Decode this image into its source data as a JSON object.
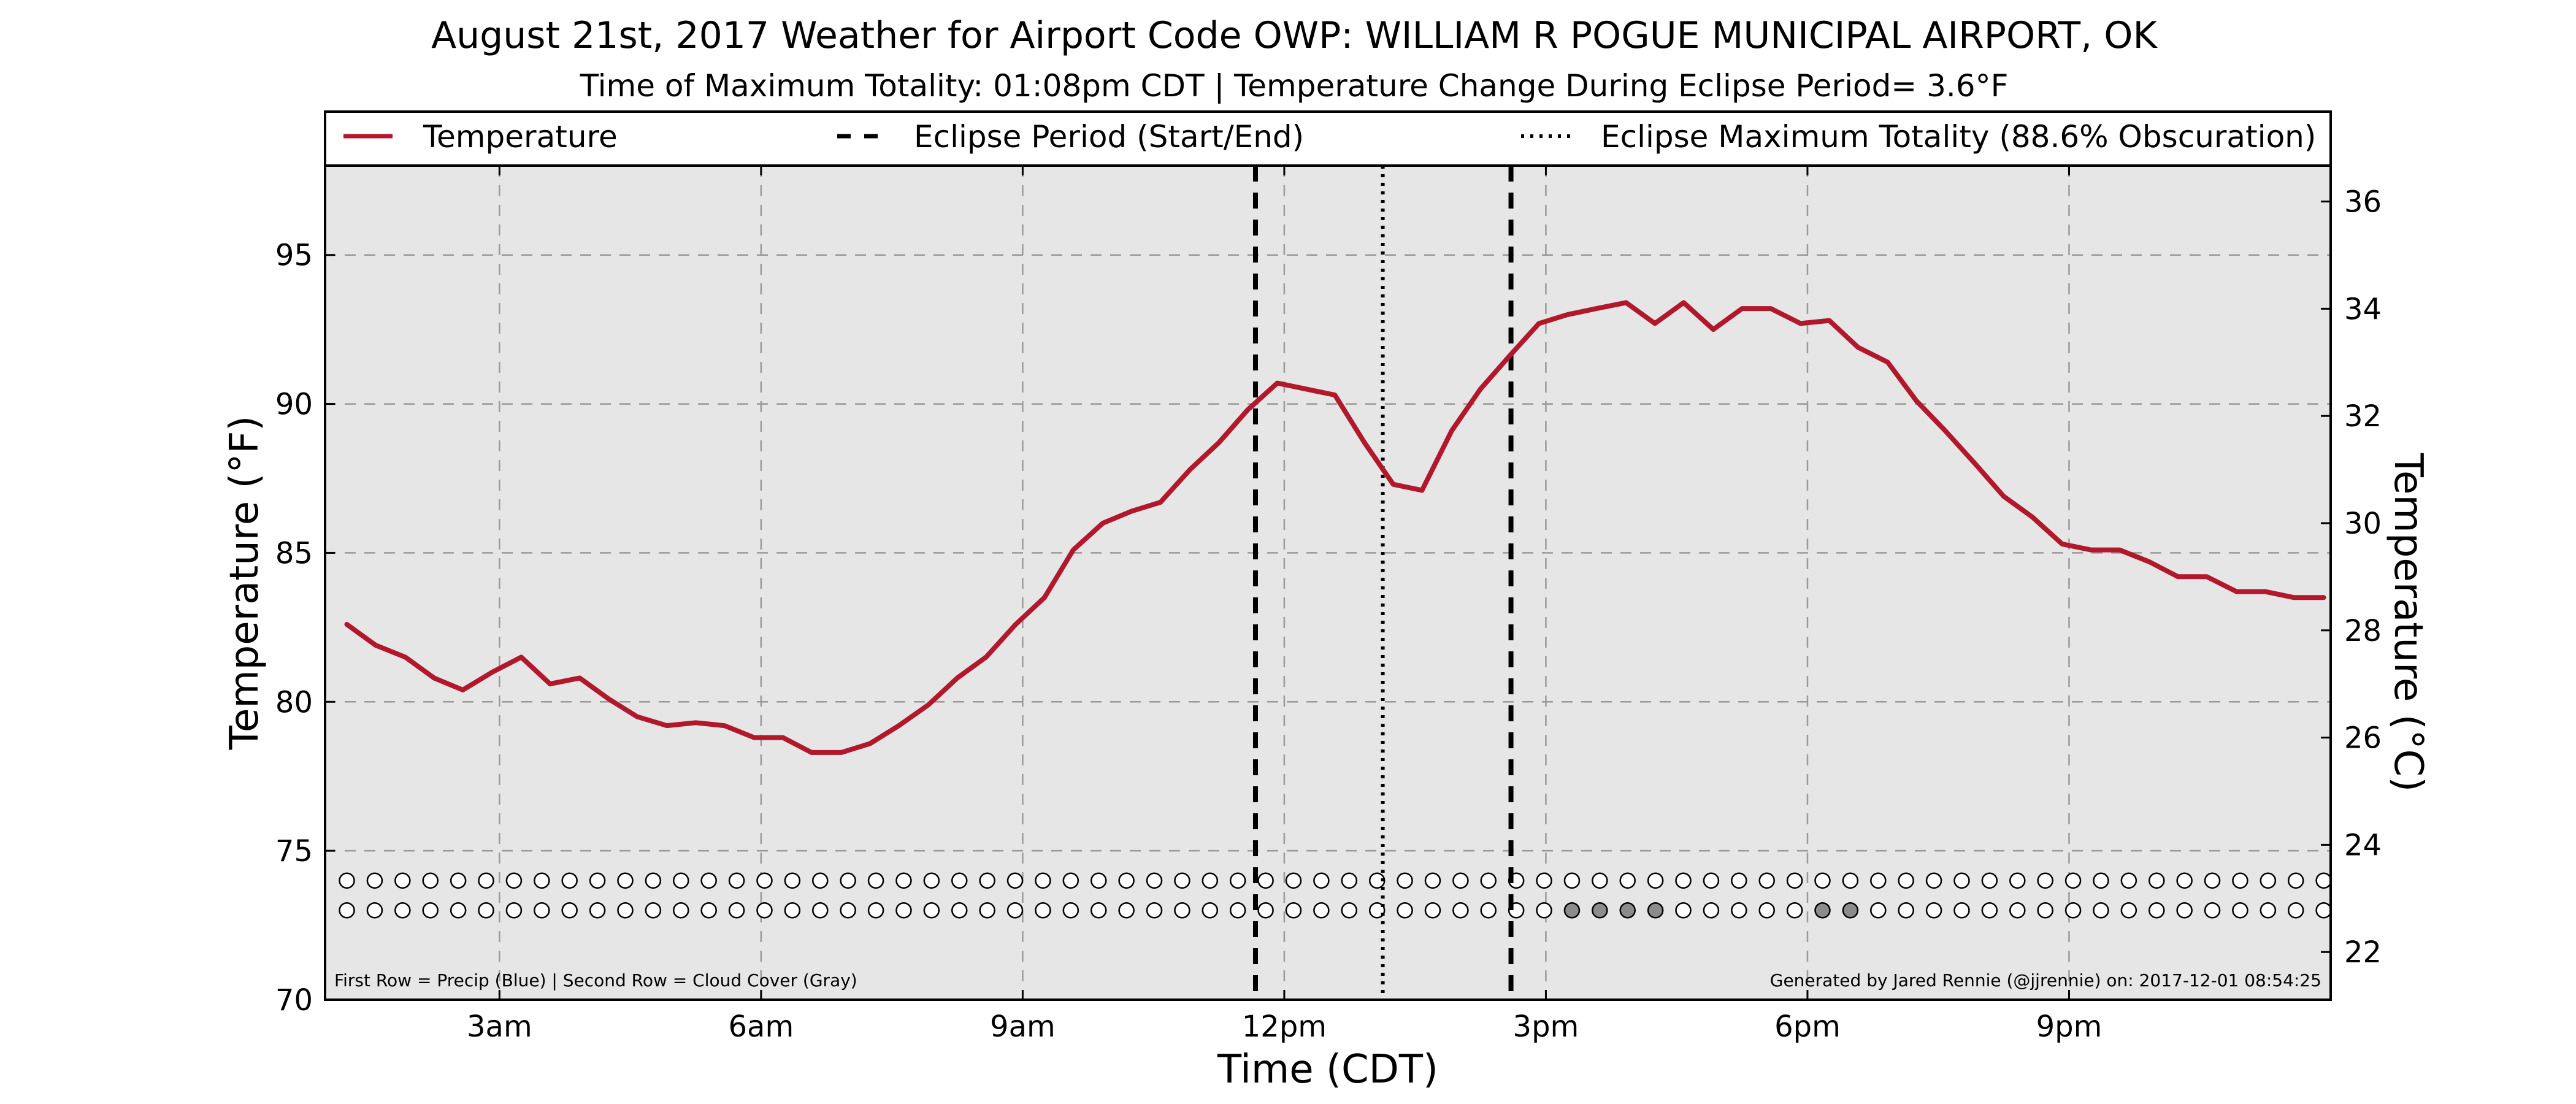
{
  "chart_data": {
    "type": "line",
    "title": "August 21st, 2017 Weather for Airport Code OWP: WILLIAM R POGUE MUNICIPAL AIRPORT, OK",
    "subtitle": "Time of Maximum Totality: 01:08pm CDT | Temperature Change During Eclipse Period= 3.6°F",
    "xlabel": "Time (CDT)",
    "ylabel": "Temperature (°F)",
    "ylabel_right": "Temperature (°C)",
    "xlim": [
      1.0,
      24.0
    ],
    "ylim": [
      70,
      98
    ],
    "ylim_right": [
      21.11,
      36.67
    ],
    "x_ticks": [
      {
        "x": 3,
        "label": "3am"
      },
      {
        "x": 6,
        "label": "6am"
      },
      {
        "x": 9,
        "label": "9am"
      },
      {
        "x": 12,
        "label": "12pm"
      },
      {
        "x": 15,
        "label": "3pm"
      },
      {
        "x": 18,
        "label": "6pm"
      },
      {
        "x": 21,
        "label": "9pm"
      }
    ],
    "y_ticks": [
      70,
      75,
      80,
      85,
      90,
      95
    ],
    "y_ticks_right": [
      22,
      24,
      26,
      28,
      30,
      32,
      34,
      36
    ],
    "grid": true,
    "legend_placement": "top",
    "legend": {
      "temperature": "Temperature",
      "eclipse_period": "Eclipse Period (Start/End)",
      "eclipse_max": "Eclipse Maximum Totality (88.6% Obscuration)"
    },
    "eclipse_start": 11.67,
    "eclipse_max_time": 13.13,
    "eclipse_end": 14.6,
    "series": [
      {
        "name": "Temperature",
        "color": "#b2182b",
        "x": [
          1.25,
          1.58,
          1.92,
          2.25,
          2.58,
          2.92,
          3.25,
          3.58,
          3.92,
          4.25,
          4.58,
          4.92,
          5.25,
          5.58,
          5.92,
          6.25,
          6.58,
          6.92,
          7.25,
          7.58,
          7.92,
          8.25,
          8.58,
          8.92,
          9.25,
          9.58,
          9.92,
          10.25,
          10.58,
          10.92,
          11.25,
          11.58,
          11.92,
          12.25,
          12.58,
          12.92,
          13.25,
          13.58,
          13.92,
          14.25,
          14.58,
          14.92,
          15.25,
          15.58,
          15.92,
          16.25,
          16.58,
          16.92,
          17.25,
          17.58,
          17.92,
          18.25,
          18.58,
          18.92,
          19.25,
          19.58,
          19.92,
          20.25,
          20.58,
          20.92,
          21.25,
          21.58,
          21.92,
          22.25,
          22.58,
          22.92,
          23.25,
          23.58,
          23.92
        ],
        "values": [
          82.6,
          81.9,
          81.5,
          80.8,
          80.4,
          81.0,
          81.5,
          80.6,
          80.8,
          80.1,
          79.5,
          79.2,
          79.3,
          79.2,
          78.8,
          78.8,
          78.3,
          78.3,
          78.6,
          79.2,
          79.9,
          80.8,
          81.5,
          82.6,
          83.5,
          85.1,
          86.0,
          86.4,
          86.7,
          87.8,
          88.7,
          89.8,
          90.7,
          90.5,
          90.3,
          88.7,
          87.3,
          87.1,
          89.1,
          90.5,
          91.6,
          92.7,
          93.0,
          93.2,
          93.4,
          92.7,
          93.4,
          92.5,
          93.2,
          93.2,
          92.7,
          92.8,
          91.9,
          91.4,
          90.1,
          89.1,
          88.0,
          86.9,
          86.2,
          85.3,
          85.1,
          85.1,
          84.7,
          84.2,
          84.2,
          83.7,
          83.7,
          83.5,
          83.5
        ]
      }
    ],
    "indicator_rows": {
      "precip_level": [
        0,
        0,
        0,
        0,
        0,
        0,
        0,
        0,
        0,
        0,
        0,
        0,
        0,
        0,
        0,
        0,
        0,
        0,
        0,
        0,
        0,
        0,
        0,
        0,
        0,
        0,
        0,
        0,
        0,
        0,
        0,
        0,
        0,
        0,
        0,
        0,
        0,
        0,
        0,
        0,
        0,
        0,
        0,
        0,
        0,
        0,
        0,
        0,
        0,
        0,
        0,
        0,
        0,
        0,
        0,
        0,
        0,
        0,
        0,
        0,
        0,
        0,
        0,
        0,
        0,
        0,
        0,
        0,
        0,
        0,
        0,
        0
      ],
      "cloud_level": [
        0,
        0,
        0,
        0,
        0,
        0,
        0,
        0,
        0,
        0,
        0,
        0,
        0,
        0,
        0,
        0,
        0,
        0,
        0,
        0,
        0,
        0,
        0,
        0,
        0,
        0,
        0,
        0,
        0,
        0,
        0,
        0,
        0,
        0,
        0,
        0,
        0,
        0,
        0,
        0,
        0,
        0,
        0,
        0,
        0,
        0,
        0,
        0,
        0,
        0,
        0,
        0,
        0,
        0,
        0,
        0,
        0,
        0,
        0,
        0,
        0,
        0,
        0,
        0,
        0,
        0,
        0,
        0,
        0,
        0,
        0,
        0
      ]
    },
    "cloud_gray_indices": [
      44,
      45,
      46,
      47,
      53,
      54
    ],
    "footnote_left": "First Row = Precip (Blue) | Second Row = Cloud Cover (Gray)",
    "footnote_right": "Generated by Jared Rennie (@jjrennie) on: 2017-12-01 08:54:25",
    "colors": {
      "line": "#b2182b",
      "plot_bg": "#e6e6e6",
      "grid": "#9a9a9a",
      "cloud_gray": "#8c8c8c"
    }
  }
}
